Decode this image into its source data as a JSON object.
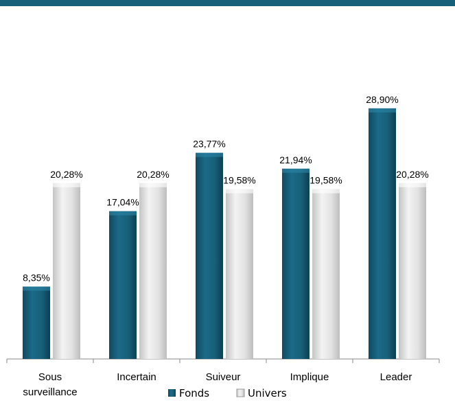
{
  "chart_data": {
    "type": "bar",
    "categories": [
      [
        "Sous",
        "surveillance"
      ],
      [
        "Incertain"
      ],
      [
        "Suiveur"
      ],
      [
        "Implique"
      ],
      [
        "Leader"
      ]
    ],
    "series": [
      {
        "name": "Fonds",
        "color": "#17607a",
        "values": [
          8.35,
          17.04,
          23.77,
          21.94,
          28.9
        ],
        "labels": [
          "8,35%",
          "17,04%",
          "23,77%",
          "21,94%",
          "28,90%"
        ]
      },
      {
        "name": "Univers",
        "color": "#dcdcdc",
        "values": [
          20.28,
          20.28,
          19.58,
          19.58,
          20.28
        ],
        "labels": [
          "20,28%",
          "20,28%",
          "19,58%",
          "19,58%",
          "20,28%"
        ]
      }
    ],
    "ylim": [
      0,
      31.5
    ],
    "grid": false,
    "legend": "bottom-center"
  },
  "colors": {
    "header_bar": "#17607a"
  }
}
